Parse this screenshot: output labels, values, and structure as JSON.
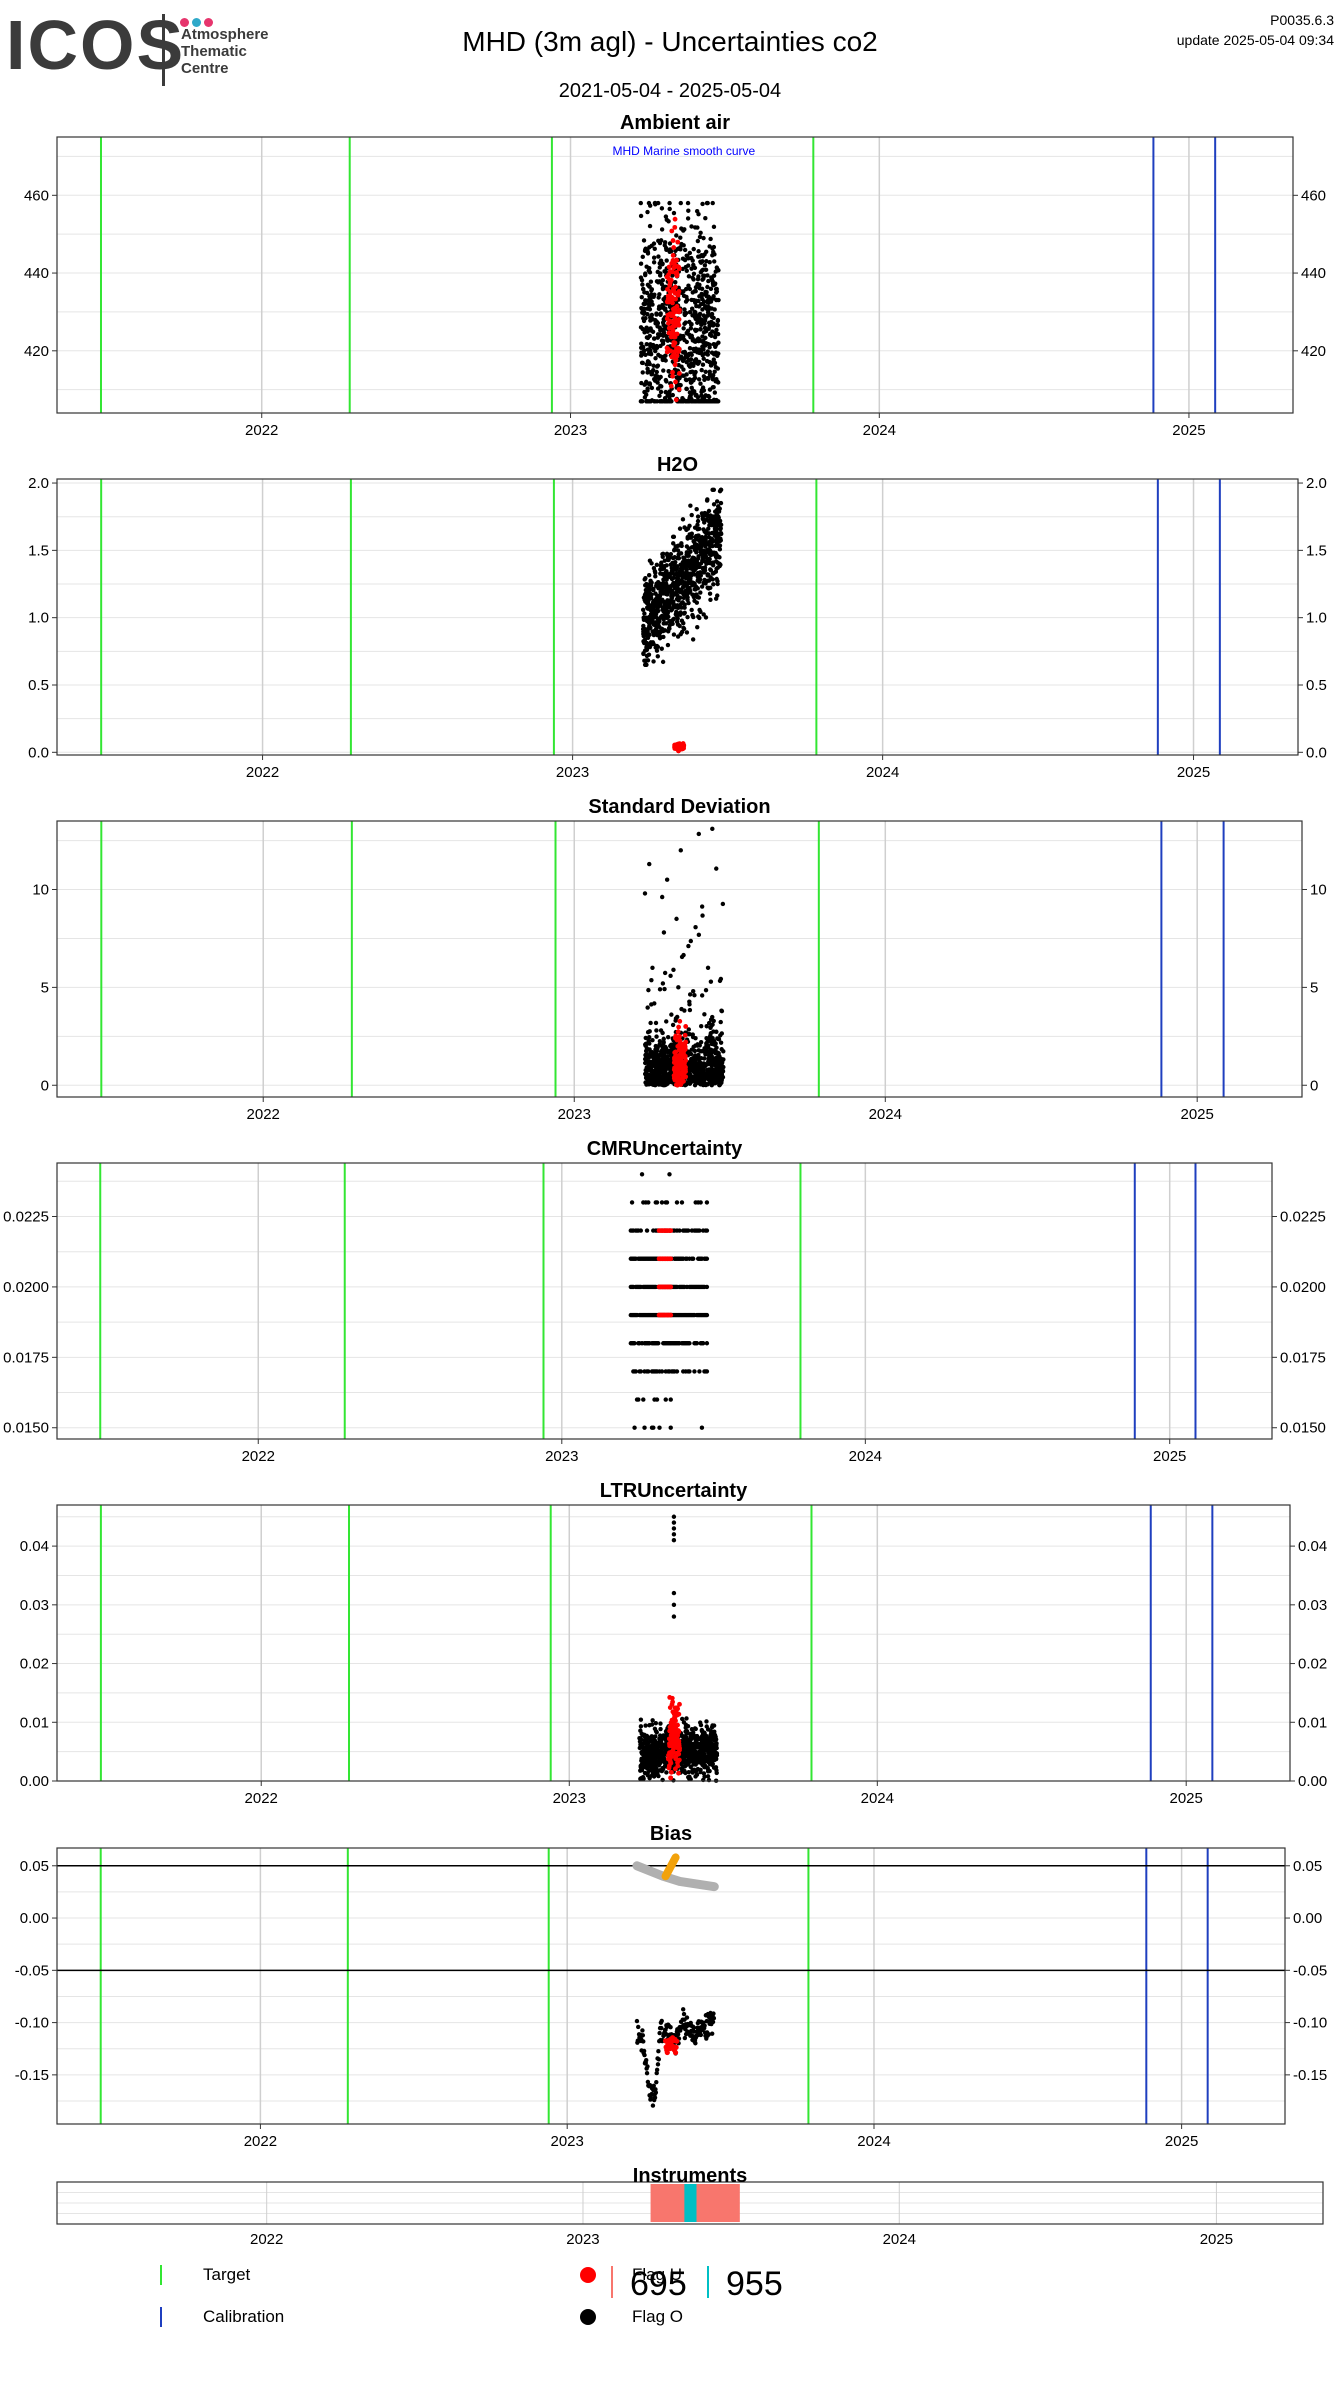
{
  "header": {
    "logo_word": "ICOS",
    "logo_subtitle": "Atmosphere\nThematic\nCentre",
    "logo_dot_colors": [
      "#e6356d",
      "#2fa9c9",
      "#e6356d"
    ],
    "title": "MHD  (3m agl) - Uncertainties co2",
    "date_range": "2021-05-04 - 2025-05-04",
    "version": "P0035.6.3",
    "update": "update  2025-05-04 09:34"
  },
  "colors": {
    "target": "#33e633",
    "calibration": "#1f3fbf",
    "flag_u": "#ff0000",
    "flag_o": "#000000",
    "instrument_695": "#f8766d",
    "instrument_955": "#00bfc4",
    "grid": "#e5e5e5",
    "year_grid": "#cfcfcf"
  },
  "chart_data": [
    {
      "type": "scatter",
      "title": "Ambient air",
      "annotation": "MHD Marine smooth curve",
      "ylim": [
        404,
        475
      ],
      "yticks": [
        420,
        440,
        460
      ],
      "ytick_labels": [
        "420",
        "440",
        "460"
      ],
      "xlim": [
        "2021-05-04",
        "2025-05-04"
      ],
      "xticks": [
        "2022-01-01",
        "2023-01-01",
        "2024-01-01",
        "2025-01-01"
      ],
      "xtick_labels": [
        "2022",
        "2023",
        "2024",
        "2025"
      ],
      "target_lines": [
        "2021-06-25",
        "2022-04-15",
        "2022-12-10",
        "2023-10-15"
      ],
      "calibration_lines": [
        "2024-11-20",
        "2025-02-01"
      ],
      "black_cloud": {
        "x_range": [
          "2023-03-25",
          "2023-06-25"
        ],
        "y_center": 425,
        "y_spread": 14,
        "y_max": 458,
        "y_min": 407
      },
      "red_cloud": {
        "x_range": [
          "2023-04-25",
          "2023-05-10"
        ],
        "y_center": 430,
        "y_spread": 10
      }
    },
    {
      "type": "scatter",
      "title": "H2O",
      "ylim": [
        -0.02,
        2.03
      ],
      "yticks": [
        0.0,
        0.5,
        1.0,
        1.5,
        2.0
      ],
      "ytick_labels": [
        "0.0",
        "0.5",
        "1.0",
        "1.5",
        "2.0"
      ],
      "xlim": [
        "2021-05-04",
        "2025-05-04"
      ],
      "xticks": [
        "2022-01-01",
        "2023-01-01",
        "2024-01-01",
        "2025-01-01"
      ],
      "xtick_labels": [
        "2022",
        "2023",
        "2024",
        "2025"
      ],
      "target_lines": [
        "2021-06-25",
        "2022-04-15",
        "2022-12-10",
        "2023-10-15"
      ],
      "calibration_lines": [
        "2024-11-20",
        "2025-02-01"
      ],
      "black_cloud": {
        "x_range": [
          "2023-03-25",
          "2023-06-25"
        ],
        "y_start": 0.95,
        "y_end": 1.6,
        "y_spread": 0.18,
        "y_max": 1.95,
        "y_min": 0.65
      },
      "red_cloud": {
        "x_range": [
          "2023-05-01",
          "2023-05-12"
        ],
        "y_center": 0.04,
        "y_spread": 0.01
      }
    },
    {
      "type": "scatter",
      "title": "Standard Deviation",
      "ylim": [
        -0.6,
        13.5
      ],
      "yticks": [
        0,
        5,
        10
      ],
      "ytick_labels": [
        "0",
        "5",
        "10"
      ],
      "xlim": [
        "2021-05-04",
        "2025-05-04"
      ],
      "xticks": [
        "2022-01-01",
        "2023-01-01",
        "2024-01-01",
        "2025-01-01"
      ],
      "xtick_labels": [
        "2022",
        "2023",
        "2024",
        "2025"
      ],
      "target_lines": [
        "2021-06-25",
        "2022-04-15",
        "2022-12-10",
        "2023-10-15"
      ],
      "calibration_lines": [
        "2024-11-20",
        "2025-02-01"
      ],
      "black_cloud": {
        "x_range": [
          "2023-03-25",
          "2023-06-25"
        ],
        "y_center": 0.6,
        "y_spread": 1.2,
        "y_max": 13.1,
        "y_min": 0
      },
      "red_cloud": {
        "x_range": [
          "2023-04-28",
          "2023-05-12"
        ],
        "y_center": 1.0,
        "y_spread": 1.0
      }
    },
    {
      "type": "scatter",
      "title": "CMRUncertainty",
      "ylim": [
        0.0146,
        0.0244
      ],
      "yticks": [
        0.015,
        0.0175,
        0.02,
        0.0225
      ],
      "ytick_labels": [
        "0.0150",
        "0.0175",
        "0.0200",
        "0.0225"
      ],
      "xlim": [
        "2021-05-04",
        "2025-05-04"
      ],
      "xticks": [
        "2022-01-01",
        "2023-01-01",
        "2024-01-01",
        "2025-01-01"
      ],
      "xtick_labels": [
        "2022",
        "2023",
        "2024",
        "2025"
      ],
      "target_lines": [
        "2021-06-25",
        "2022-04-15",
        "2022-12-10",
        "2023-10-15"
      ],
      "calibration_lines": [
        "2024-11-20",
        "2025-02-01"
      ],
      "levels": [
        0.015,
        0.016,
        0.017,
        0.018,
        0.019,
        0.02,
        0.021,
        0.022,
        0.023,
        0.024
      ],
      "black_cloud": {
        "x_range": [
          "2023-03-25",
          "2023-06-25"
        ]
      },
      "red_cloud": {
        "x_range": [
          "2023-04-28",
          "2023-05-12"
        ],
        "levels": [
          0.019,
          0.02,
          0.021,
          0.022
        ]
      }
    },
    {
      "type": "scatter",
      "title": "LTRUncertainty",
      "ylim": [
        0,
        0.047
      ],
      "yticks": [
        0.0,
        0.01,
        0.02,
        0.03,
        0.04
      ],
      "ytick_labels": [
        "0.00",
        "0.01",
        "0.02",
        "0.03",
        "0.04"
      ],
      "xlim": [
        "2021-05-04",
        "2025-05-04"
      ],
      "xticks": [
        "2022-01-01",
        "2023-01-01",
        "2024-01-01",
        "2025-01-01"
      ],
      "xtick_labels": [
        "2022",
        "2023",
        "2024",
        "2025"
      ],
      "target_lines": [
        "2021-06-25",
        "2022-04-15",
        "2022-12-10",
        "2023-10-15"
      ],
      "calibration_lines": [
        "2024-11-20",
        "2025-02-01"
      ],
      "black_cloud": {
        "x_range": [
          "2023-03-25",
          "2023-06-25"
        ],
        "y_center": 0.005,
        "y_spread": 0.002,
        "outliers": [
          0.028,
          0.03,
          0.032,
          0.041,
          0.042,
          0.043,
          0.044,
          0.045
        ]
      },
      "red_cloud": {
        "x_range": [
          "2023-04-28",
          "2023-05-12"
        ],
        "y_center": 0.007,
        "y_spread": 0.003
      }
    },
    {
      "type": "line",
      "title": "Bias",
      "ylim": [
        -0.197,
        0.067
      ],
      "yticks": [
        -0.15,
        -0.1,
        -0.05,
        0.0,
        0.05
      ],
      "ytick_labels": [
        "-0.15",
        "-0.10",
        "-0.05",
        "0.00",
        "0.05"
      ],
      "hlines": [
        0.05,
        -0.05
      ],
      "xlim": [
        "2021-05-04",
        "2025-05-04"
      ],
      "xticks": [
        "2022-01-01",
        "2023-01-01",
        "2024-01-01",
        "2025-01-01"
      ],
      "xtick_labels": [
        "2022",
        "2023",
        "2024",
        "2025"
      ],
      "target_lines": [
        "2021-06-25",
        "2022-04-15",
        "2022-12-10",
        "2023-10-15"
      ],
      "calibration_lines": [
        "2024-11-20",
        "2025-02-01"
      ],
      "gray_trend": {
        "x": [
          "2023-03-25",
          "2023-04-25",
          "2023-05-15",
          "2023-06-25"
        ],
        "y": [
          0.05,
          0.04,
          0.035,
          0.03
        ]
      },
      "orange_trend": {
        "x": [
          "2023-04-28",
          "2023-05-10"
        ],
        "y": [
          0.04,
          0.058
        ]
      },
      "black_series": {
        "x": [
          "2023-03-25",
          "2023-04-01",
          "2023-04-08",
          "2023-04-15",
          "2023-04-22",
          "2023-05-01",
          "2023-05-10",
          "2023-05-20",
          "2023-06-01",
          "2023-06-10",
          "2023-06-20",
          "2023-06-25"
        ],
        "y": [
          -0.105,
          -0.12,
          -0.16,
          -0.175,
          -0.11,
          -0.11,
          -0.115,
          -0.1,
          -0.11,
          -0.105,
          -0.1,
          -0.1
        ]
      },
      "red_series": {
        "x": [
          "2023-04-28",
          "2023-05-05",
          "2023-05-12"
        ],
        "y": [
          -0.125,
          -0.12,
          -0.12
        ]
      }
    }
  ],
  "instruments": {
    "title": "Instruments",
    "xlim": [
      "2021-05-04",
      "2025-05-04"
    ],
    "xtick_labels": [
      "2022",
      "2023",
      "2024",
      "2025"
    ],
    "items": [
      {
        "label": "695",
        "start": "2023-03-20",
        "end": "2023-07-01",
        "color": "#f8766d"
      },
      {
        "label": "955",
        "start": "2023-04-28",
        "end": "2023-05-12",
        "color": "#00bfc4"
      }
    ]
  },
  "legend": {
    "target_label": "Target",
    "calibration_label": "Calibration",
    "flag_u_label": "Flag U",
    "flag_o_label": "Flag O"
  }
}
